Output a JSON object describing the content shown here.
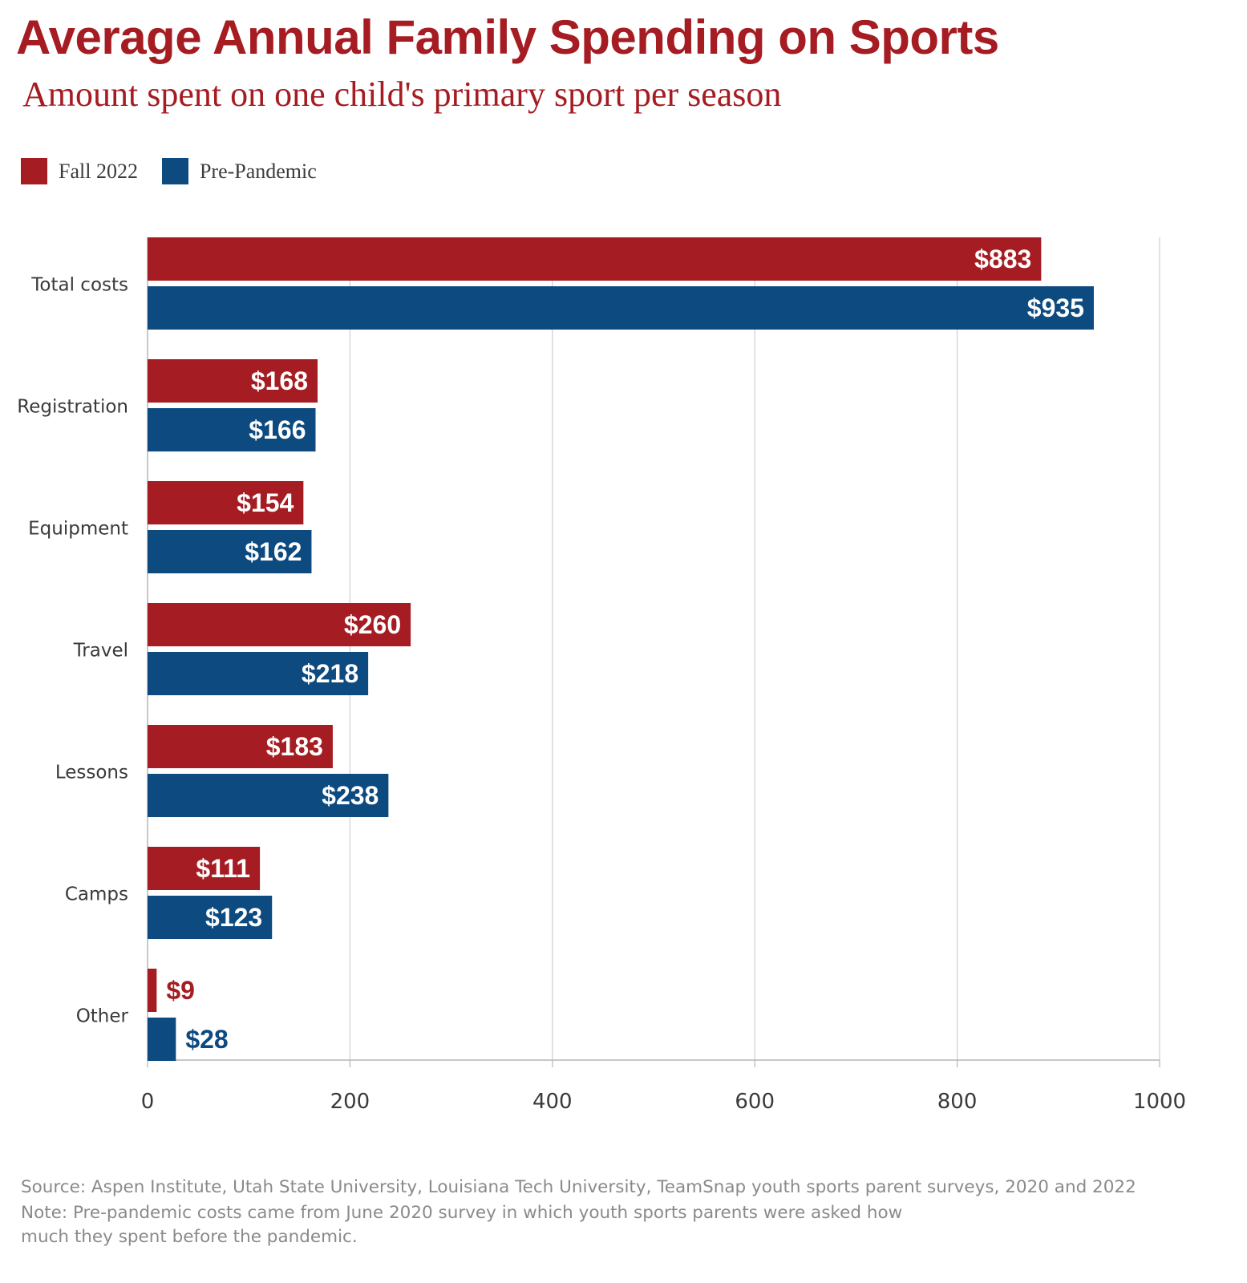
{
  "header": {
    "title": "Average Annual Family Spending on Sports",
    "subtitle": "Amount spent on one child's primary sport per season"
  },
  "legend": [
    {
      "label": "Fall 2022",
      "color": "#a51c22"
    },
    {
      "label": "Pre-Pandemic",
      "color": "#0c4a7f"
    }
  ],
  "chart_data": {
    "type": "bar",
    "orientation": "horizontal",
    "categories": [
      "Total costs",
      "Registration",
      "Equipment",
      "Travel",
      "Lessons",
      "Camps",
      "Other"
    ],
    "series": [
      {
        "name": "Fall 2022",
        "color": "#a51c22",
        "values": [
          883,
          168,
          154,
          260,
          183,
          111,
          9
        ],
        "labels": [
          "$883",
          "$168",
          "$154",
          "$260",
          "$183",
          "$111",
          "$9"
        ]
      },
      {
        "name": "Pre-Pandemic",
        "color": "#0c4a7f",
        "values": [
          935,
          166,
          162,
          218,
          238,
          123,
          28
        ],
        "labels": [
          "$935",
          "$166",
          "$162",
          "$218",
          "$238",
          "$123",
          "$28"
        ]
      }
    ],
    "xlim": [
      0,
      1000
    ],
    "xticks": [
      0,
      200,
      400,
      600,
      800,
      1000
    ],
    "xtick_labels": [
      "0",
      "200",
      "400",
      "600",
      "800",
      "1000"
    ],
    "grid": true,
    "legend_position": "top-left"
  },
  "footer": {
    "source": "Source: Aspen Institute, Utah State University, Louisiana Tech University, TeamSnap youth sports parent surveys, 2020 and 2022",
    "note": "Note: Pre-pandemic costs came from June 2020 survey in which youth sports parents were asked how much they spent before the pandemic."
  }
}
